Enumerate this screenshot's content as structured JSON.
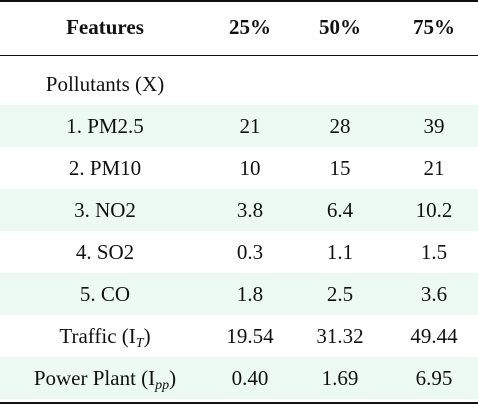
{
  "table": {
    "headers": [
      "Features",
      "25%",
      "50%",
      "75%"
    ],
    "section_label": "Pollutants (X)",
    "rows": [
      {
        "feature": "1. PM2.5",
        "values": [
          "21",
          "28",
          "39"
        ],
        "shaded": true
      },
      {
        "feature": "2. PM10",
        "values": [
          "10",
          "15",
          "21"
        ],
        "shaded": false
      },
      {
        "feature": "3. NO2",
        "values": [
          "3.8",
          "6.4",
          "10.2"
        ],
        "shaded": true
      },
      {
        "feature": "4. SO2",
        "values": [
          "0.3",
          "1.1",
          "1.5"
        ],
        "shaded": false
      },
      {
        "feature": "5. CO",
        "values": [
          "1.8",
          "2.5",
          "3.6"
        ],
        "shaded": true
      }
    ],
    "traffic": {
      "label": "Traffic (I",
      "sub": "T",
      "close": ")",
      "values": [
        "19.54",
        "31.32",
        "49.44"
      ],
      "shaded": false
    },
    "power_plant": {
      "label": "Power Plant (I",
      "sub": "pp",
      "close": ")",
      "values": [
        "0.40",
        "1.69",
        "6.95"
      ],
      "shaded": true
    },
    "shade_color": "#ecfaf3",
    "rule_color": "#111111"
  }
}
